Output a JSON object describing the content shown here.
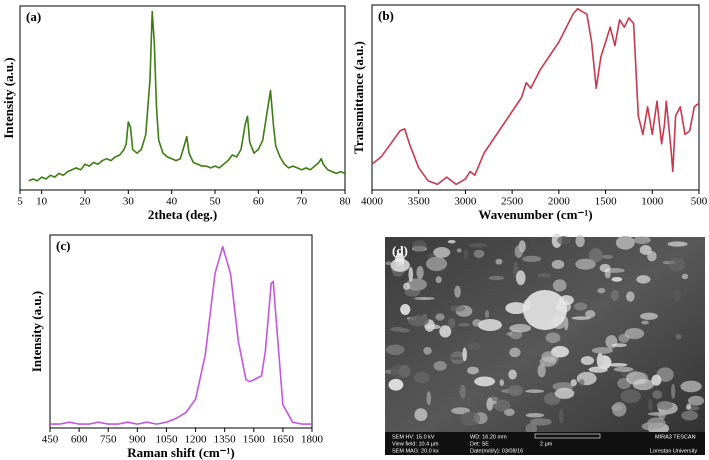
{
  "chart_data": [
    {
      "type": "line",
      "label": "(a)",
      "xlabel": "2theta (deg.)",
      "ylabel": "Intensity (a.u.)",
      "color": "#3d7d12",
      "xlim": [
        5,
        80
      ],
      "xticks": [
        5,
        10,
        20,
        30,
        40,
        50,
        60,
        70,
        80
      ],
      "ylim": [
        0,
        100
      ],
      "x": [
        7,
        8,
        9,
        10,
        11,
        12,
        13,
        14,
        15,
        16,
        17,
        18,
        19,
        20,
        21,
        22,
        23,
        24,
        25,
        26,
        27,
        28,
        29,
        29.5,
        30,
        30.5,
        31,
        32,
        33,
        34,
        35,
        35.5,
        36,
        36.5,
        37,
        38,
        39,
        40,
        41,
        42,
        43,
        43.5,
        44,
        45,
        46,
        47,
        48,
        49,
        50,
        51,
        52,
        53,
        54,
        55,
        56,
        57,
        57.5,
        58,
        59,
        60,
        61,
        62,
        62.8,
        63.5,
        64,
        65,
        66,
        67,
        68,
        69,
        70,
        71,
        72,
        73,
        74,
        74.5,
        75,
        76,
        77,
        78,
        79,
        80
      ],
      "values": [
        5,
        6,
        5,
        7,
        6,
        8,
        7,
        9,
        8,
        10,
        11,
        12,
        11,
        14,
        13,
        15,
        14,
        16,
        17,
        16,
        18,
        19,
        22,
        25,
        37,
        34,
        22,
        20,
        22,
        30,
        60,
        97,
        80,
        45,
        27,
        20,
        18,
        17,
        16,
        17,
        25,
        29,
        20,
        15,
        14,
        13,
        13,
        12,
        13,
        12,
        14,
        16,
        19,
        18,
        22,
        36,
        40,
        26,
        20,
        22,
        27,
        42,
        54,
        35,
        24,
        18,
        14,
        12,
        13,
        12,
        11,
        12,
        11,
        13,
        15,
        17,
        14,
        11,
        10,
        9,
        10,
        9
      ]
    },
    {
      "type": "line",
      "label": "(b)",
      "xlabel": "Wavenumber (cm⁻¹)",
      "ylabel": "Transmittance (a.u.)",
      "color": "#c8394e",
      "xlim": [
        4000,
        500
      ],
      "xticks": [
        4000,
        3500,
        3000,
        2500,
        2000,
        1500,
        1000,
        500
      ],
      "ylim": [
        0,
        100
      ],
      "x": [
        4000,
        3900,
        3800,
        3700,
        3650,
        3600,
        3500,
        3400,
        3300,
        3200,
        3100,
        3000,
        2950,
        2900,
        2800,
        2600,
        2400,
        2350,
        2300,
        2200,
        2000,
        1850,
        1800,
        1700,
        1650,
        1600,
        1550,
        1500,
        1450,
        1400,
        1350,
        1300,
        1250,
        1200,
        1180,
        1150,
        1100,
        1050,
        1000,
        950,
        900,
        870,
        850,
        800,
        780,
        750,
        700,
        650,
        600,
        550,
        500
      ],
      "values": [
        14,
        18,
        25,
        32,
        33,
        25,
        12,
        5,
        3,
        7,
        3,
        6,
        10,
        8,
        20,
        35,
        50,
        58,
        55,
        65,
        80,
        95,
        98,
        95,
        80,
        55,
        72,
        80,
        88,
        78,
        92,
        88,
        93,
        90,
        70,
        40,
        30,
        45,
        30,
        48,
        25,
        35,
        48,
        22,
        10,
        40,
        45,
        30,
        32,
        45,
        47
      ]
    },
    {
      "type": "line",
      "label": "(c)",
      "xlabel": "Raman shift (cm⁻¹)",
      "ylabel": "Intensity (a.u.)",
      "color": "#c257de",
      "xlim": [
        450,
        1800
      ],
      "xticks": [
        450,
        600,
        750,
        900,
        1050,
        1200,
        1350,
        1500,
        1650,
        1800
      ],
      "ylim": [
        0,
        100
      ],
      "x": [
        450,
        500,
        550,
        600,
        650,
        700,
        750,
        800,
        850,
        900,
        950,
        1000,
        1050,
        1100,
        1150,
        1200,
        1250,
        1300,
        1340,
        1380,
        1420,
        1460,
        1480,
        1500,
        1540,
        1560,
        1590,
        1600,
        1620,
        1650,
        1700,
        1750,
        1800
      ],
      "values": [
        2,
        2,
        3,
        2,
        2,
        3,
        2,
        2,
        3,
        2,
        3,
        2,
        3,
        5,
        8,
        15,
        38,
        80,
        94,
        80,
        45,
        25,
        24,
        25,
        27,
        40,
        75,
        76,
        50,
        12,
        3,
        2,
        2
      ]
    }
  ],
  "sem_image": {
    "label": "(d)",
    "hv": "SEM HV: 15.0 kV",
    "wd": "WD: 16.20 mm",
    "brand": "MIRA3 TESCAN",
    "view": "View field: 10.4 μm",
    "det": "Det: SE",
    "scale": "2 μm",
    "mag": "SEM MAG: 20.0 kx",
    "date": "Date(m/d/y): 03/08/16",
    "lab": "Lorestan University"
  }
}
